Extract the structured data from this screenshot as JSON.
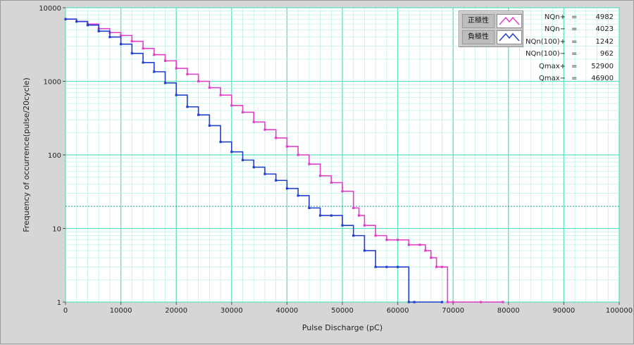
{
  "chart_data": {
    "type": "line",
    "xlabel": "Pulse Discharge (pC)",
    "ylabel": "Frequency of occurrence(pulse/20cycle)",
    "xlim": [
      0,
      100000
    ],
    "ylim": [
      1,
      10000
    ],
    "y_scale": "log",
    "grid": true,
    "x_ticks": [
      0,
      10000,
      20000,
      30000,
      40000,
      50000,
      60000,
      70000,
      80000,
      90000,
      100000
    ],
    "y_ticks": [
      1,
      10,
      100,
      1000,
      10000
    ],
    "threshold_line_y": 20,
    "legend_position": "top-right",
    "series": [
      {
        "name": "正極性",
        "color": "#e040c8",
        "x": [
          0,
          2000,
          4000,
          6000,
          8000,
          10000,
          12000,
          14000,
          16000,
          18000,
          20000,
          22000,
          24000,
          26000,
          28000,
          30000,
          32000,
          34000,
          36000,
          38000,
          40000,
          42000,
          44000,
          46000,
          48000,
          50000,
          52000,
          53000,
          54000,
          56000,
          58000,
          60000,
          62000,
          64000,
          65000,
          66000,
          67000,
          68000,
          69000,
          70000,
          75000,
          79000
        ],
        "y": [
          7000,
          6500,
          6000,
          5200,
          4600,
          4200,
          3500,
          2800,
          2300,
          1900,
          1500,
          1250,
          1000,
          820,
          650,
          470,
          380,
          280,
          220,
          170,
          130,
          100,
          75,
          52,
          42,
          32,
          19,
          15,
          11,
          8,
          7,
          7,
          6,
          6,
          5,
          4,
          3,
          3,
          1,
          1,
          1,
          1
        ]
      },
      {
        "name": "負極性",
        "color": "#2040d0",
        "x": [
          0,
          2000,
          4000,
          6000,
          8000,
          10000,
          12000,
          14000,
          16000,
          18000,
          20000,
          22000,
          24000,
          26000,
          28000,
          30000,
          32000,
          34000,
          36000,
          38000,
          40000,
          42000,
          44000,
          46000,
          48000,
          50000,
          52000,
          54000,
          56000,
          58000,
          60000,
          62000,
          63000,
          68000
        ],
        "y": [
          7000,
          6500,
          5800,
          4800,
          4000,
          3200,
          2400,
          1800,
          1350,
          950,
          650,
          450,
          350,
          250,
          150,
          110,
          85,
          68,
          55,
          45,
          35,
          28,
          19,
          15,
          15,
          11,
          8,
          5,
          3,
          3,
          3,
          1,
          1,
          1
        ]
      }
    ],
    "stats": [
      {
        "key": "NQn+",
        "value": "4982"
      },
      {
        "key": "NQn−",
        "value": "4023"
      },
      {
        "key": "NQn(100)+",
        "value": "1242"
      },
      {
        "key": "NQn(100)−",
        "value": "962"
      },
      {
        "key": "Qmax+",
        "value": "52900"
      },
      {
        "key": "Qmax−",
        "value": "46900"
      }
    ]
  }
}
